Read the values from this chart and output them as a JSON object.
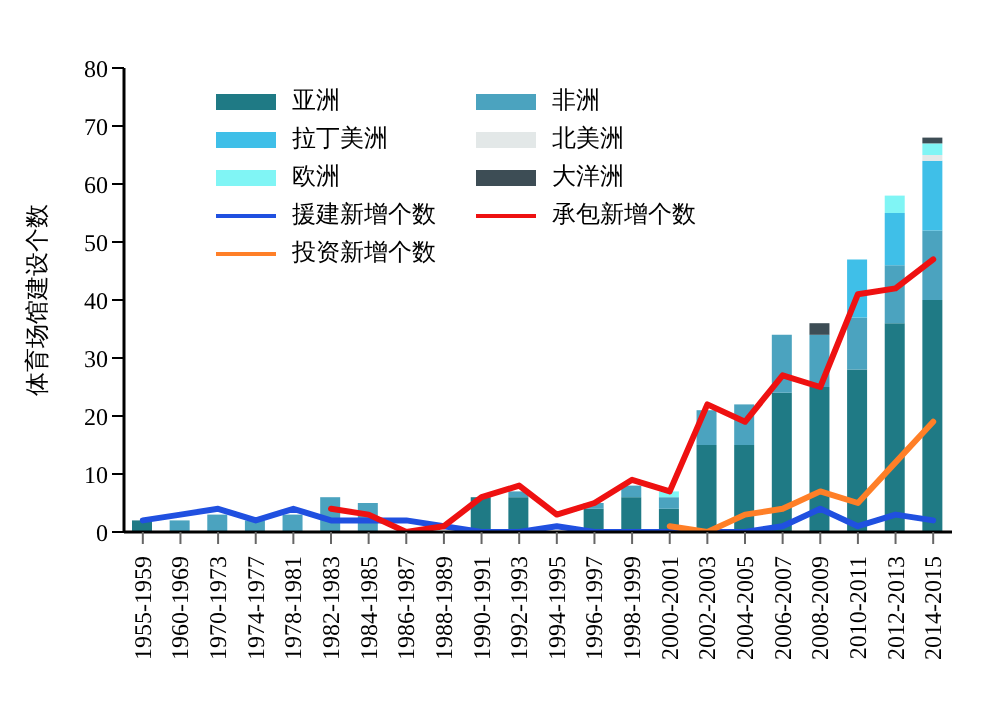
{
  "chart_data": {
    "type": "bar",
    "stacked": true,
    "ylabel": "体育场馆建设个数",
    "categories": [
      "1955-1959",
      "1960-1969",
      "1970-1973",
      "1974-1977",
      "1978-1981",
      "1982-1983",
      "1984-1985",
      "1986-1987",
      "1988-1989",
      "1990-1991",
      "1992-1993",
      "1994-1995",
      "1996-1997",
      "1998-1999",
      "2000-2001",
      "2002-2003",
      "2004-2005",
      "2006-2007",
      "2008-2009",
      "2010-2011",
      "2012-2013",
      "2014-2015"
    ],
    "series": [
      {
        "name": "亚洲",
        "color": "#1f7a85",
        "values": [
          2,
          0,
          0,
          0,
          0,
          0,
          0,
          null,
          null,
          6,
          6,
          null,
          4,
          6,
          4,
          15,
          15,
          24,
          25,
          28,
          36,
          40
        ]
      },
      {
        "name": "非洲",
        "color": "#4ba3bf",
        "values": [
          0,
          2,
          3,
          2,
          3,
          6,
          5,
          0,
          0,
          0,
          1,
          0,
          1,
          2,
          2,
          6,
          7,
          10,
          9,
          9,
          10,
          12
        ]
      },
      {
        "name": "拉丁美洲",
        "color": "#3fbfe8",
        "values": [
          0,
          0,
          0,
          0,
          0,
          0,
          0,
          0,
          0,
          0,
          0,
          0,
          0,
          0,
          0,
          0,
          0,
          0,
          0,
          10,
          9,
          12
        ]
      },
      {
        "name": "北美洲",
        "color": "#e3e8e8",
        "values": [
          0,
          0,
          0,
          0,
          0,
          0,
          0,
          0,
          0,
          0,
          0,
          0,
          0,
          0,
          0,
          0,
          0,
          0,
          0,
          0,
          0,
          1
        ]
      },
      {
        "name": "欧洲",
        "color": "#80f5f5",
        "values": [
          0,
          0,
          0,
          0,
          0,
          0,
          0,
          0,
          0,
          0,
          0,
          0,
          0,
          0,
          1,
          0,
          0,
          0,
          0,
          0,
          3,
          2
        ]
      },
      {
        "name": "大洋洲",
        "color": "#3d4d55",
        "values": [
          0,
          0,
          0,
          0,
          0,
          0,
          0,
          0,
          0,
          0,
          0,
          0,
          0,
          0,
          0,
          0,
          0,
          0,
          2,
          0,
          0,
          1
        ]
      },
      {
        "name": "援建新增个数",
        "type": "line",
        "color": "#2050e0",
        "values": [
          2,
          3,
          4,
          2,
          4,
          2,
          2,
          2,
          1,
          0,
          0,
          1,
          0,
          0,
          0,
          0,
          0,
          1,
          4,
          1,
          3,
          2
        ]
      },
      {
        "name": "承包新增个数",
        "type": "line",
        "color": "#ee1111",
        "values": [
          null,
          null,
          null,
          null,
          null,
          4,
          3,
          0,
          1,
          6,
          8,
          3,
          5,
          9,
          7,
          22,
          19,
          27,
          25,
          41,
          42,
          47
        ]
      },
      {
        "name": "投资新增个数",
        "type": "line",
        "color": "#ff7f27",
        "values": [
          null,
          null,
          null,
          null,
          null,
          null,
          null,
          null,
          null,
          null,
          null,
          null,
          null,
          null,
          1,
          0,
          3,
          4,
          7,
          5,
          12,
          19
        ]
      }
    ],
    "ylim": [
      0,
      80
    ],
    "yticks": [
      0,
      10,
      20,
      30,
      40,
      50,
      60,
      70,
      80
    ],
    "grid": false,
    "legend": "top",
    "marker": "none",
    "line_style": "solid"
  }
}
